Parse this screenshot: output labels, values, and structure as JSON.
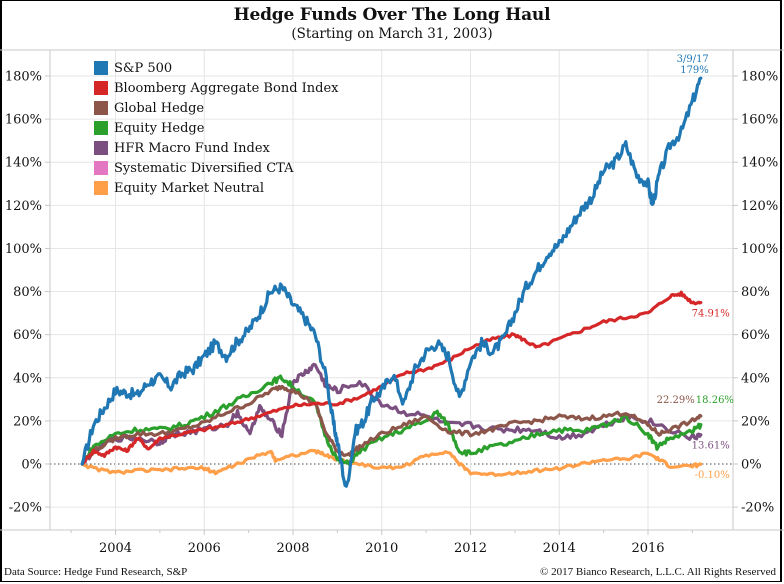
{
  "chart_data": {
    "type": "line",
    "title": "Hedge Funds Over The Long Haul",
    "subtitle": "(Starting on March 31, 2003)",
    "xlabel": "",
    "ylabel": "",
    "x_range": [
      2003.25,
      2017.19
    ],
    "ylim": [
      -20,
      190
    ],
    "x_ticks": [
      2004,
      2006,
      2008,
      2010,
      2012,
      2014,
      2016
    ],
    "x_tick_labels": [
      "2004",
      "2006",
      "2008",
      "2010",
      "2012",
      "2014",
      "2016"
    ],
    "y_ticks": [
      -20,
      0,
      20,
      40,
      60,
      80,
      100,
      120,
      140,
      160,
      180
    ],
    "y_tick_labels": [
      "-20%",
      "0%",
      "20%",
      "40%",
      "60%",
      "80%",
      "100%",
      "120%",
      "140%",
      "160%",
      "180%"
    ],
    "grid": true,
    "zero_line": "dotted",
    "legend_position": "top-left",
    "series": [
      {
        "name": "S&P 500",
        "color": "#1f77b4",
        "end_label": "179%",
        "end_date_label": "3/9/17",
        "x": [
          2003.25,
          2003.5,
          2003.75,
          2004.0,
          2004.25,
          2004.5,
          2004.75,
          2005.0,
          2005.25,
          2005.5,
          2005.75,
          2006.0,
          2006.25,
          2006.5,
          2006.75,
          2007.0,
          2007.25,
          2007.5,
          2007.75,
          2008.0,
          2008.25,
          2008.5,
          2008.75,
          2008.9,
          2009.0,
          2009.2,
          2009.4,
          2009.6,
          2009.8,
          2010.0,
          2010.25,
          2010.5,
          2010.75,
          2011.0,
          2011.25,
          2011.5,
          2011.75,
          2012.0,
          2012.25,
          2012.5,
          2012.75,
          2013.0,
          2013.25,
          2013.5,
          2013.75,
          2014.0,
          2014.25,
          2014.5,
          2014.75,
          2015.0,
          2015.25,
          2015.5,
          2015.75,
          2016.0,
          2016.1,
          2016.25,
          2016.5,
          2016.75,
          2017.0,
          2017.19
        ],
        "y": [
          0,
          18,
          26,
          34,
          33,
          32,
          38,
          40,
          36,
          42,
          44,
          50,
          56,
          50,
          57,
          62,
          70,
          80,
          82,
          74,
          68,
          60,
          40,
          20,
          10,
          -12,
          15,
          20,
          30,
          34,
          42,
          28,
          44,
          52,
          56,
          50,
          30,
          48,
          56,
          52,
          58,
          70,
          82,
          90,
          98,
          102,
          110,
          118,
          124,
          136,
          140,
          148,
          134,
          130,
          120,
          134,
          148,
          154,
          168,
          179
        ]
      },
      {
        "name": "Bloomberg Aggregate Bond Index",
        "color": "#d62728",
        "end_label": "74.91%",
        "x": [
          2003.25,
          2003.5,
          2003.75,
          2004.0,
          2004.25,
          2004.5,
          2004.75,
          2005.0,
          2005.5,
          2006.0,
          2006.5,
          2007.0,
          2007.5,
          2008.0,
          2008.5,
          2009.0,
          2009.5,
          2010.0,
          2010.5,
          2011.0,
          2011.5,
          2012.0,
          2012.5,
          2013.0,
          2013.25,
          2013.5,
          2014.0,
          2014.5,
          2015.0,
          2015.5,
          2016.0,
          2016.5,
          2016.75,
          2017.0,
          2017.19
        ],
        "y": [
          0,
          6,
          4,
          8,
          6,
          12,
          7,
          12,
          14,
          16,
          18,
          21,
          24,
          27,
          28,
          28,
          31,
          36,
          42,
          44,
          48,
          54,
          58,
          60,
          57,
          54,
          58,
          62,
          66,
          68,
          70,
          78,
          79,
          75,
          74.91
        ]
      },
      {
        "name": "Global Hedge",
        "color": "#8c564b",
        "end_label": "22.29%",
        "x": [
          2003.25,
          2003.5,
          2004.0,
          2004.5,
          2005.0,
          2005.5,
          2006.0,
          2006.5,
          2007.0,
          2007.5,
          2007.75,
          2008.0,
          2008.5,
          2008.75,
          2009.0,
          2009.25,
          2009.5,
          2010.0,
          2010.5,
          2011.0,
          2011.5,
          2012.0,
          2012.5,
          2013.0,
          2013.5,
          2014.0,
          2014.5,
          2015.0,
          2015.5,
          2016.0,
          2016.25,
          2016.5,
          2017.0,
          2017.19
        ],
        "y": [
          0,
          6,
          12,
          14,
          14,
          16,
          19,
          24,
          28,
          34,
          36,
          34,
          28,
          14,
          6,
          4,
          8,
          14,
          18,
          22,
          15,
          14,
          16,
          19,
          20,
          22,
          21,
          22,
          24,
          18,
          14,
          16,
          20,
          22.29
        ]
      },
      {
        "name": "Equity Hedge",
        "color": "#2ca02c",
        "end_label": "18.26%",
        "x": [
          2003.25,
          2003.5,
          2004.0,
          2004.5,
          2005.0,
          2005.5,
          2006.0,
          2006.5,
          2007.0,
          2007.5,
          2007.75,
          2008.0,
          2008.5,
          2008.75,
          2009.0,
          2009.25,
          2009.5,
          2010.0,
          2010.5,
          2011.0,
          2011.25,
          2011.5,
          2011.75,
          2012.0,
          2012.5,
          2013.0,
          2013.5,
          2014.0,
          2014.5,
          2015.0,
          2015.5,
          2016.0,
          2016.2,
          2016.5,
          2017.0,
          2017.19
        ],
        "y": [
          0,
          8,
          14,
          16,
          16,
          18,
          22,
          27,
          32,
          38,
          40,
          36,
          28,
          12,
          2,
          0,
          6,
          12,
          16,
          20,
          24,
          18,
          6,
          5,
          8,
          10,
          14,
          16,
          15,
          18,
          22,
          14,
          8,
          12,
          15,
          18.26
        ]
      },
      {
        "name": "HFR Macro Fund Index",
        "color": "#7b4f7f",
        "end_label": "13.61%",
        "x": [
          2003.25,
          2003.5,
          2004.0,
          2004.5,
          2005.0,
          2005.25,
          2005.5,
          2006.0,
          2006.5,
          2006.75,
          2007.0,
          2007.25,
          2007.5,
          2007.75,
          2008.0,
          2008.25,
          2008.5,
          2008.75,
          2009.0,
          2009.5,
          2010.0,
          2010.5,
          2011.0,
          2011.5,
          2012.0,
          2012.5,
          2013.0,
          2013.5,
          2014.0,
          2014.5,
          2015.0,
          2015.5,
          2016.0,
          2016.5,
          2017.0,
          2017.19
        ],
        "y": [
          0,
          6,
          12,
          12,
          10,
          14,
          14,
          16,
          18,
          24,
          14,
          26,
          20,
          14,
          38,
          42,
          46,
          36,
          34,
          38,
          28,
          24,
          22,
          18,
          18,
          16,
          16,
          16,
          12,
          14,
          18,
          22,
          20,
          16,
          12,
          13.61
        ]
      },
      {
        "name": "Systematic Diversified CTA",
        "color": "#e377c2",
        "end_label": "",
        "x": [],
        "y": []
      },
      {
        "name": "Equity Market Neutral",
        "color": "#ff9f4a",
        "end_label": "-0.10%",
        "x": [
          2003.25,
          2003.5,
          2004.0,
          2004.5,
          2005.0,
          2005.5,
          2006.0,
          2006.25,
          2006.5,
          2007.0,
          2007.5,
          2007.6,
          2008.0,
          2008.5,
          2008.75,
          2009.0,
          2009.5,
          2010.0,
          2010.5,
          2011.0,
          2011.5,
          2011.75,
          2012.0,
          2012.5,
          2013.0,
          2013.5,
          2014.0,
          2014.5,
          2015.0,
          2015.5,
          2016.0,
          2016.25,
          2016.5,
          2017.0,
          2017.19
        ],
        "y": [
          0,
          -2,
          -4,
          -3,
          -3,
          -2,
          -2,
          -4,
          -2,
          2,
          6,
          2,
          4,
          6,
          4,
          2,
          0,
          -2,
          -1,
          4,
          6,
          0,
          -4,
          -5,
          -4,
          -3,
          -2,
          0,
          2,
          2,
          5,
          2,
          -1,
          -1,
          -0.1
        ]
      }
    ]
  },
  "footer": {
    "source": "Data Source: Hedge Fund Research, S&P",
    "copyright": "© 2017 Bianco Research, L.L.C. All Rights Reserved"
  }
}
